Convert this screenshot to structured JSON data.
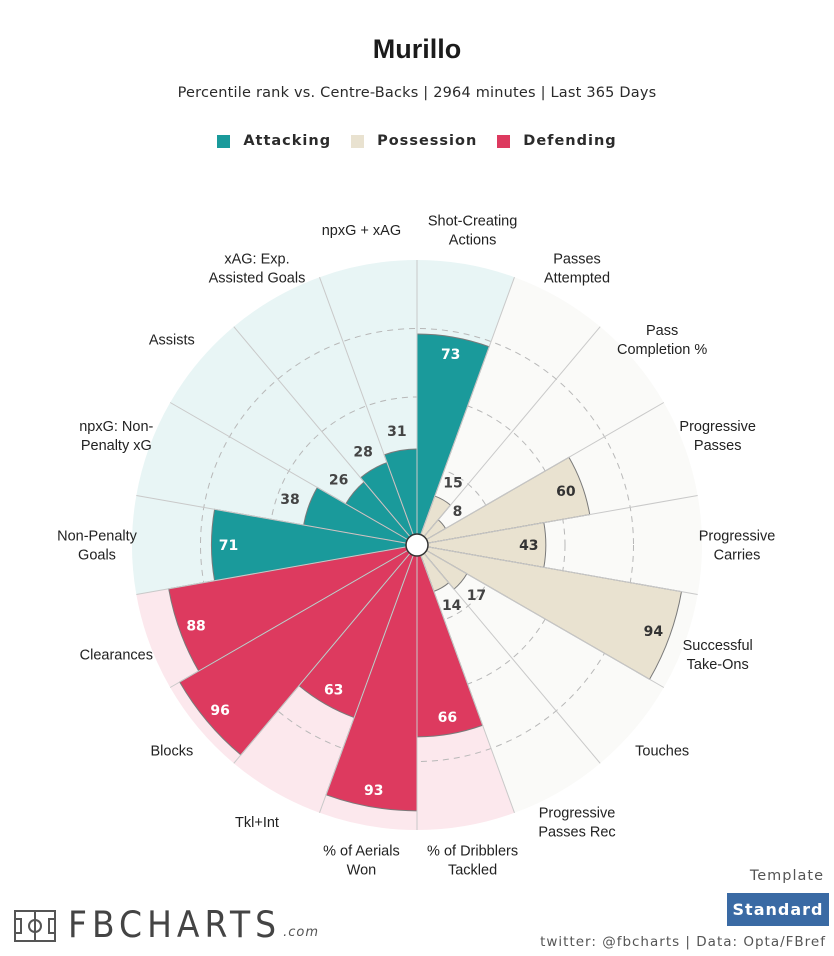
{
  "title": "Murillo",
  "subtitle": "Percentile rank vs. Centre-Backs | 2964 minutes | Last 365 Days",
  "legend": [
    {
      "label": "Attacking",
      "color": "#1a9a9b"
    },
    {
      "label": "Possession",
      "color": "#e9e2d0"
    },
    {
      "label": "Defending",
      "color": "#dd3a5f"
    }
  ],
  "template": {
    "label": "Template",
    "value": "Standard"
  },
  "credit": "twitter: @fbcharts | Data: Opta/FBref",
  "logo": {
    "text": "FBCHARTS",
    "suffix": ".com"
  },
  "chart_data": {
    "type": "radial-bar",
    "rlim": [
      0,
      100
    ],
    "grid_rings": [
      25,
      50,
      75
    ],
    "categories": [
      {
        "label": [
          "Shot-Creating",
          "Actions"
        ],
        "value": 73,
        "group": "Attacking"
      },
      {
        "label": [
          "Passes",
          "Attempted"
        ],
        "value": 15,
        "group": "Possession"
      },
      {
        "label": [
          "Pass",
          "Completion %"
        ],
        "value": 8,
        "group": "Possession"
      },
      {
        "label": [
          "Progressive",
          "Passes"
        ],
        "value": 60,
        "group": "Possession"
      },
      {
        "label": [
          "Progressive",
          "Carries"
        ],
        "value": 43,
        "group": "Possession"
      },
      {
        "label": [
          "Successful",
          "Take-Ons"
        ],
        "value": 94,
        "group": "Possession"
      },
      {
        "label": [
          "Touches"
        ],
        "value": 17,
        "group": "Possession"
      },
      {
        "label": [
          "Progressive",
          "Passes Rec"
        ],
        "value": 14,
        "group": "Possession"
      },
      {
        "label": [
          "% of Dribblers",
          "Tackled"
        ],
        "value": 66,
        "group": "Defending"
      },
      {
        "label": [
          "% of Aerials",
          "Won"
        ],
        "value": 93,
        "group": "Defending"
      },
      {
        "label": [
          "Tkl+Int"
        ],
        "value": 63,
        "group": "Defending"
      },
      {
        "label": [
          "Blocks"
        ],
        "value": 96,
        "group": "Defending"
      },
      {
        "label": [
          "Clearances"
        ],
        "value": 88,
        "group": "Defending"
      },
      {
        "label": [
          "Non-Penalty",
          "Goals"
        ],
        "value": 71,
        "group": "Attacking"
      },
      {
        "label": [
          "npxG: Non-",
          "Penalty xG"
        ],
        "value": 38,
        "group": "Attacking"
      },
      {
        "label": [
          "Assists"
        ],
        "value": 26,
        "group": "Attacking"
      },
      {
        "label": [
          "xAG: Exp.",
          "Assisted Goals"
        ],
        "value": 28,
        "group": "Attacking"
      },
      {
        "label": [
          "npxG + xAG"
        ],
        "value": 31,
        "group": "Attacking"
      }
    ],
    "group_colors": {
      "Attacking": {
        "bar": "#1a9a9b",
        "bg": "#e8f5f5",
        "text": "#ffffff"
      },
      "Possession": {
        "bar": "#e9e2d0",
        "bg": "#fafaf8",
        "text": "#333333"
      },
      "Defending": {
        "bar": "#dd3a5f",
        "bg": "#fce8ed",
        "text": "#ffffff"
      }
    }
  }
}
